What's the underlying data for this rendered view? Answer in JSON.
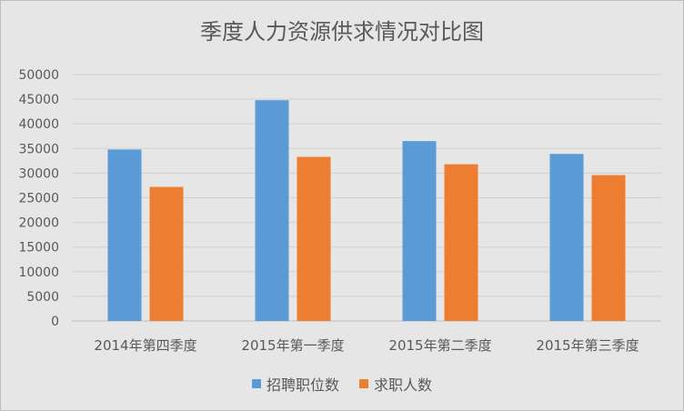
{
  "chart_data": {
    "type": "bar",
    "title": "季度人力资源供求情况对比图",
    "categories": [
      "2014年第四季度",
      "2015年第一季度",
      "2015年第二季度",
      "2015年第三季度"
    ],
    "series": [
      {
        "name": "招聘职位数",
        "color": "#5b9bd5",
        "values": [
          34800,
          44800,
          36500,
          33900
        ]
      },
      {
        "name": "求职人数",
        "color": "#ed7d31",
        "values": [
          27200,
          33300,
          31800,
          29600
        ]
      }
    ],
    "ylim": [
      0,
      50000
    ],
    "yticks": [
      "0",
      "5000",
      "10000",
      "15000",
      "20000",
      "25000",
      "30000",
      "35000",
      "40000",
      "45000",
      "50000"
    ],
    "grid": true,
    "legend_position": "bottom"
  }
}
